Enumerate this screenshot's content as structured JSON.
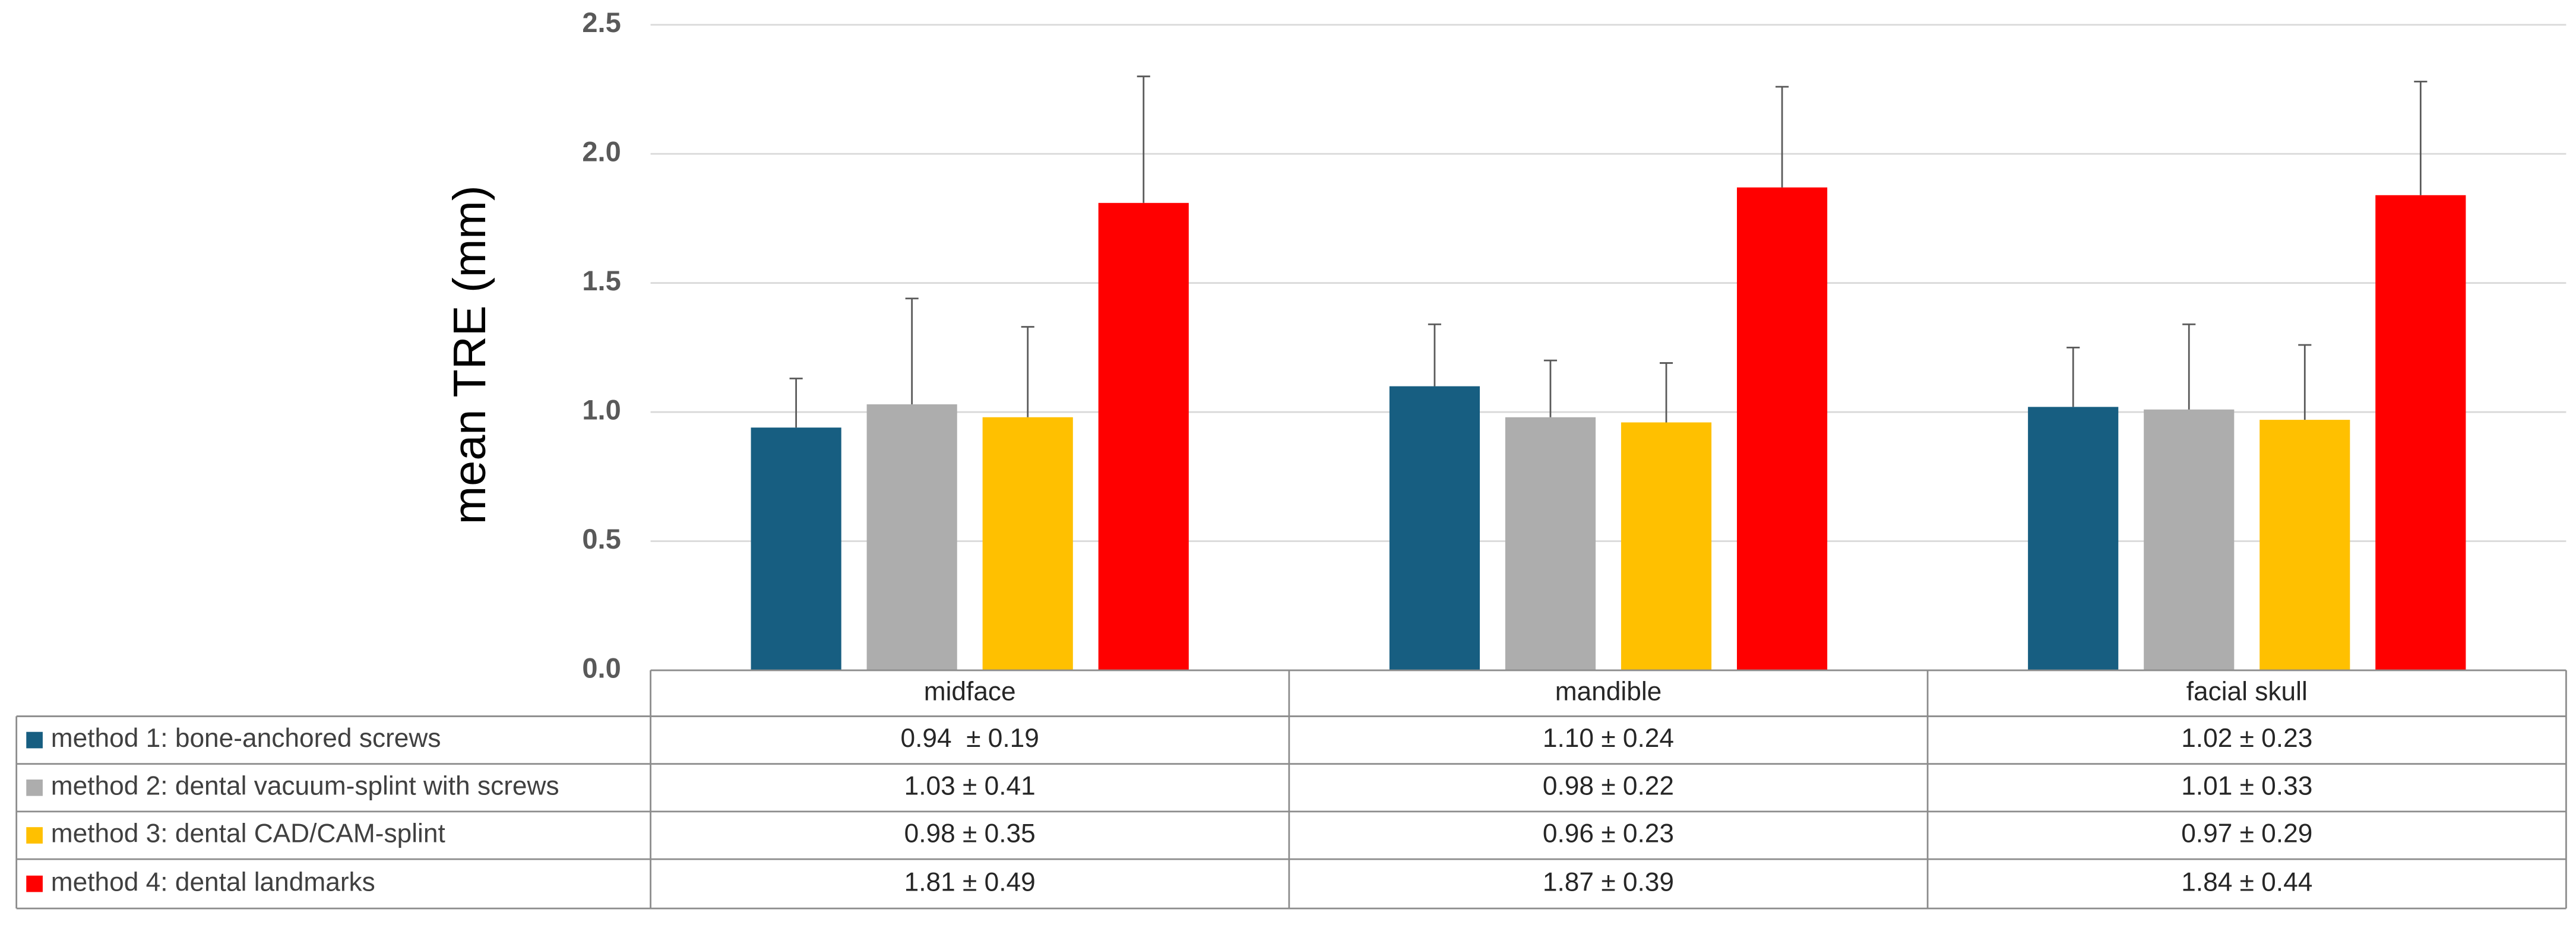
{
  "chart_data": {
    "type": "bar",
    "y_label": "mean TRE (mm)",
    "categories": [
      "midface",
      "mandible",
      "facial skull"
    ],
    "series": [
      {
        "name": "method 1: bone-anchored screws",
        "color": "#175e81",
        "values": [
          0.94,
          1.1,
          1.02
        ],
        "errors": [
          0.19,
          0.24,
          0.23
        ],
        "value_labels": [
          "0.94  ± 0.19",
          "1.10 ± 0.24",
          "1.02 ± 0.23"
        ]
      },
      {
        "name": "method 2: dental vacuum-splint with screws",
        "color": "#adadad",
        "values": [
          1.03,
          0.98,
          1.01
        ],
        "errors": [
          0.41,
          0.22,
          0.33
        ],
        "value_labels": [
          "1.03 ± 0.41",
          "0.98 ± 0.22",
          "1.01 ± 0.33"
        ]
      },
      {
        "name": "method 3: dental CAD/CAM-splint",
        "color": "#ffc000",
        "values": [
          0.98,
          0.96,
          0.97
        ],
        "errors": [
          0.35,
          0.23,
          0.29
        ],
        "value_labels": [
          "0.98 ± 0.35",
          "0.96 ± 0.23",
          "0.97 ± 0.29"
        ]
      },
      {
        "name": "method 4: dental landmarks",
        "color": "#ff0000",
        "values": [
          1.81,
          1.87,
          1.84
        ],
        "errors": [
          0.49,
          0.39,
          0.44
        ],
        "value_labels": [
          "1.81 ± 0.49",
          "1.87 ± 0.39",
          "1.84 ± 0.44"
        ]
      }
    ],
    "ylim": [
      0,
      2.5
    ],
    "yticks": [
      {
        "value": 0,
        "label": "0.0"
      },
      0.5,
      {
        "value": 1,
        "label": "1.0"
      },
      1.5,
      {
        "value": 2,
        "label": "2.0"
      },
      2.5
    ],
    "grid": true
  }
}
